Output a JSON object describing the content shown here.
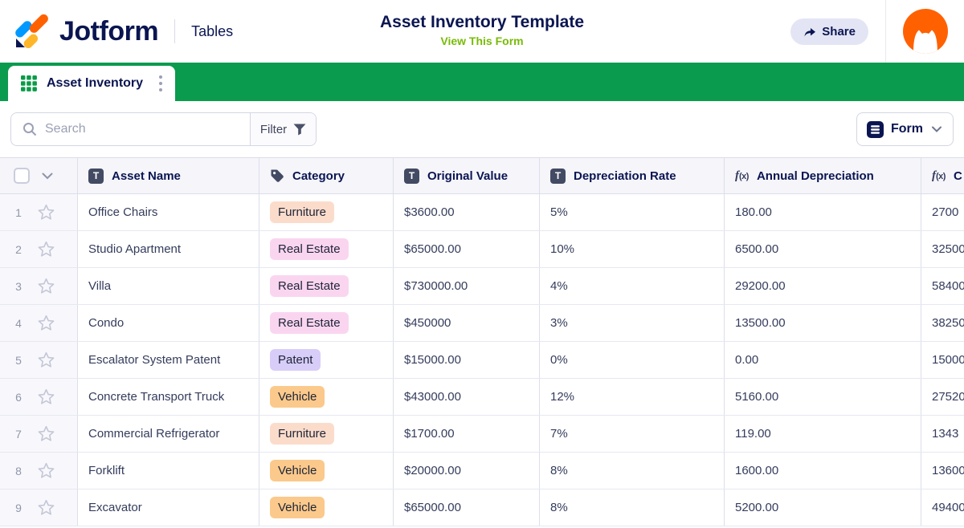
{
  "header": {
    "logo_text": "Jotform",
    "product": "Tables",
    "title": "Asset Inventory Template",
    "view_form_link": "View This Form",
    "share_label": "Share"
  },
  "tab": {
    "label": "Asset Inventory"
  },
  "toolbar": {
    "search_placeholder": "Search",
    "filter_label": "Filter",
    "form_label": "Form"
  },
  "icons": {
    "text_column_glyph": "T",
    "formula_glyph_f": "f",
    "formula_glyph_x": "(x)"
  },
  "colors": {
    "navy": "#0a1551",
    "tabbar_green": "#0b9b4e",
    "link_green": "#78bb07",
    "avatar_orange": "#ff6100",
    "share_bg": "#e3e5f5"
  },
  "table": {
    "columns": [
      {
        "id": "asset_name",
        "label": "Asset Name",
        "icon": "text"
      },
      {
        "id": "category",
        "label": "Category",
        "icon": "tag"
      },
      {
        "id": "original_value",
        "label": "Original Value",
        "icon": "text"
      },
      {
        "id": "depreciation_rate",
        "label": "Depreciation Rate",
        "icon": "text"
      },
      {
        "id": "annual_depreciation",
        "label": "Annual Depreciation",
        "icon": "formula"
      },
      {
        "id": "current_value",
        "label": "C",
        "icon": "formula"
      }
    ],
    "badge_colors": {
      "Furniture": "#fbdccb",
      "Real Estate": "#fad5f0",
      "Patent": "#d8cdf8",
      "Vehicle": "#fbc98b"
    },
    "rows": [
      {
        "num": "1",
        "asset_name": "Office Chairs",
        "category": "Furniture",
        "original_value": "$3600.00",
        "depreciation_rate": "5%",
        "annual_depreciation": "180.00",
        "current_value": "2700"
      },
      {
        "num": "2",
        "asset_name": "Studio Apartment",
        "category": "Real Estate",
        "original_value": "$65000.00",
        "depreciation_rate": "10%",
        "annual_depreciation": "6500.00",
        "current_value": "32500"
      },
      {
        "num": "3",
        "asset_name": "Villa",
        "category": "Real Estate",
        "original_value": "$730000.00",
        "depreciation_rate": "4%",
        "annual_depreciation": "29200.00",
        "current_value": "58400"
      },
      {
        "num": "4",
        "asset_name": "Condo",
        "category": "Real Estate",
        "original_value": "$450000",
        "depreciation_rate": "3%",
        "annual_depreciation": "13500.00",
        "current_value": "38250"
      },
      {
        "num": "5",
        "asset_name": "Escalator System Patent",
        "category": "Patent",
        "original_value": "$15000.00",
        "depreciation_rate": "0%",
        "annual_depreciation": "0.00",
        "current_value": "15000"
      },
      {
        "num": "6",
        "asset_name": "Concrete Transport Truck",
        "category": "Vehicle",
        "original_value": "$43000.00",
        "depreciation_rate": "12%",
        "annual_depreciation": "5160.00",
        "current_value": "27520"
      },
      {
        "num": "7",
        "asset_name": "Commercial Refrigerator",
        "category": "Furniture",
        "original_value": "$1700.00",
        "depreciation_rate": "7%",
        "annual_depreciation": "119.00",
        "current_value": "1343"
      },
      {
        "num": "8",
        "asset_name": "Forklift",
        "category": "Vehicle",
        "original_value": "$20000.00",
        "depreciation_rate": "8%",
        "annual_depreciation": "1600.00",
        "current_value": "13600"
      },
      {
        "num": "9",
        "asset_name": "Excavator",
        "category": "Vehicle",
        "original_value": "$65000.00",
        "depreciation_rate": "8%",
        "annual_depreciation": "5200.00",
        "current_value": "49400"
      }
    ]
  }
}
